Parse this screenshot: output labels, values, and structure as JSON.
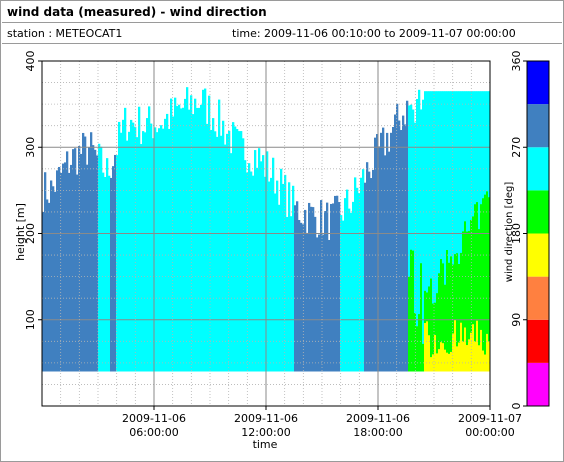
{
  "window": {
    "title": "wind data (measured) - wind direction"
  },
  "info": {
    "station_line": "station : METEOCAT1",
    "time_line": "time: 2009-11-06 00:10:00 to 2009-11-07 00:00:00"
  },
  "chart_data": {
    "type": "heatmap",
    "title": "wind data (measured) - wind direction",
    "xlabel": "time",
    "ylabel": "height [m]",
    "x_range": [
      "2009-11-06 00:00:00",
      "2009-11-07 00:00:00"
    ],
    "x_ticks": [
      {
        "time": "2009-11-06 06:00:00",
        "line1": "2009-11-06",
        "line2": "06:00:00"
      },
      {
        "time": "2009-11-06 12:00:00",
        "line1": "2009-11-06",
        "line2": "12:00:00"
      },
      {
        "time": "2009-11-06 18:00:00",
        "line1": "2009-11-06",
        "line2": "18:00:00"
      },
      {
        "time": "2009-11-07 00:00:00",
        "line1": "2009-11-07",
        "line2": "00:00:00"
      }
    ],
    "ylim": [
      0,
      400
    ],
    "y_ticks": [
      100,
      200,
      300,
      400
    ],
    "grid": true,
    "lowest_range_gate_m": 40,
    "colorbar": {
      "label": "wind direction [deg]",
      "range": [
        0,
        360
      ],
      "ticks": [
        0,
        90,
        180,
        270,
        360
      ],
      "bins": [
        {
          "from": 0,
          "to": 45,
          "color": "#ff00ff"
        },
        {
          "from": 45,
          "to": 90,
          "color": "#ff0000"
        },
        {
          "from": 90,
          "to": 135,
          "color": "#ff8040"
        },
        {
          "from": 135,
          "to": 180,
          "color": "#ffff00"
        },
        {
          "from": 180,
          "to": 225,
          "color": "#00ff00"
        },
        {
          "from": 225,
          "to": 270,
          "color": "#00ffff"
        },
        {
          "from": 270,
          "to": 315,
          "color": "#4080c0"
        },
        {
          "from": 315,
          "to": 360,
          "color": "#0000ff"
        }
      ]
    },
    "top_height_profile": {
      "times_h": [
        0.5,
        1.5,
        2.5,
        3.5,
        4.5,
        5.5,
        6.5,
        7.5,
        8.5,
        9.5,
        10.5,
        11.5,
        12.5,
        13.5,
        14.5,
        15.5,
        16.5,
        17.5,
        18.5,
        19.5,
        20.5,
        21.5,
        22.5,
        23.5
      ],
      "heights_m": [
        250,
        285,
        300,
        270,
        330,
        325,
        330,
        345,
        355,
        330,
        300,
        290,
        265,
        230,
        220,
        215,
        235,
        275,
        310,
        345,
        360,
        365,
        365,
        365
      ]
    },
    "segments": [
      {
        "from_h": 0.0,
        "to_h": 3.0,
        "dominant": "#4080c0"
      },
      {
        "from_h": 3.0,
        "to_h": 3.6,
        "dominant": "#00ffff"
      },
      {
        "from_h": 3.6,
        "to_h": 4.0,
        "dominant": "#4080c0"
      },
      {
        "from_h": 4.0,
        "to_h": 13.5,
        "dominant": "#00ffff"
      },
      {
        "from_h": 13.5,
        "to_h": 16.0,
        "dominant": "#4080c0"
      },
      {
        "from_h": 16.0,
        "to_h": 17.3,
        "dominant": "#00ffff"
      },
      {
        "from_h": 17.3,
        "to_h": 19.6,
        "dominant": "#4080c0"
      },
      {
        "from_h": 19.6,
        "to_h": 20.5,
        "dominant": "#00ffff",
        "lower": "#00ff00"
      },
      {
        "from_h": 20.5,
        "to_h": 24.0,
        "dominant": "#00ffff",
        "lower": "#00ff00",
        "bottom": "#ffff00"
      }
    ]
  }
}
